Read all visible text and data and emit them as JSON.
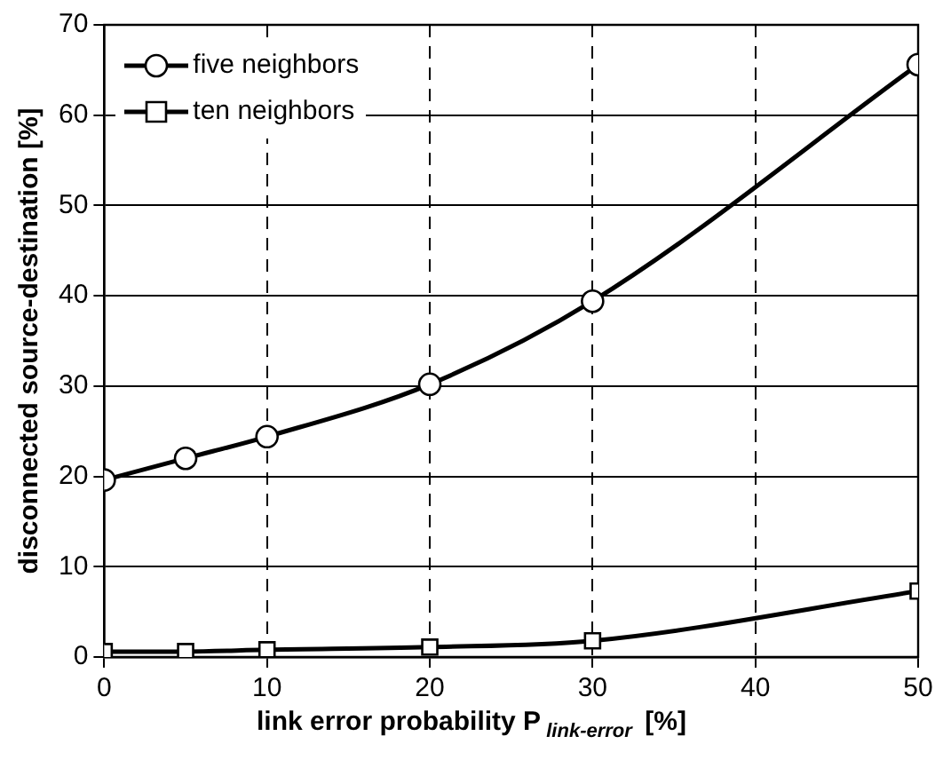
{
  "chart_data": {
    "type": "line",
    "xlabel": "link error probability P$_{link-error}$ [%]",
    "ylabel": "disconnected source-destination [%]",
    "x": [
      0,
      5,
      10,
      20,
      30,
      50
    ],
    "series": [
      {
        "name": "five neighbors",
        "color": "#000000",
        "marker": "circle",
        "values": [
          19.6,
          22.0,
          24.4,
          30.2,
          39.4,
          65.6
        ]
      },
      {
        "name": "ten neighbors",
        "color": "#000000",
        "marker": "square",
        "values": [
          0.6,
          0.6,
          0.8,
          1.1,
          1.8,
          7.3
        ]
      }
    ],
    "xlim": [
      0,
      50
    ],
    "xticks": [
      0,
      10,
      20,
      30,
      40,
      50
    ],
    "ylim": [
      0,
      70
    ],
    "yticks": [
      0,
      10,
      20,
      30,
      40,
      50,
      60,
      70
    ],
    "grid": true,
    "legend": "top left",
    "line_style": "solid"
  }
}
